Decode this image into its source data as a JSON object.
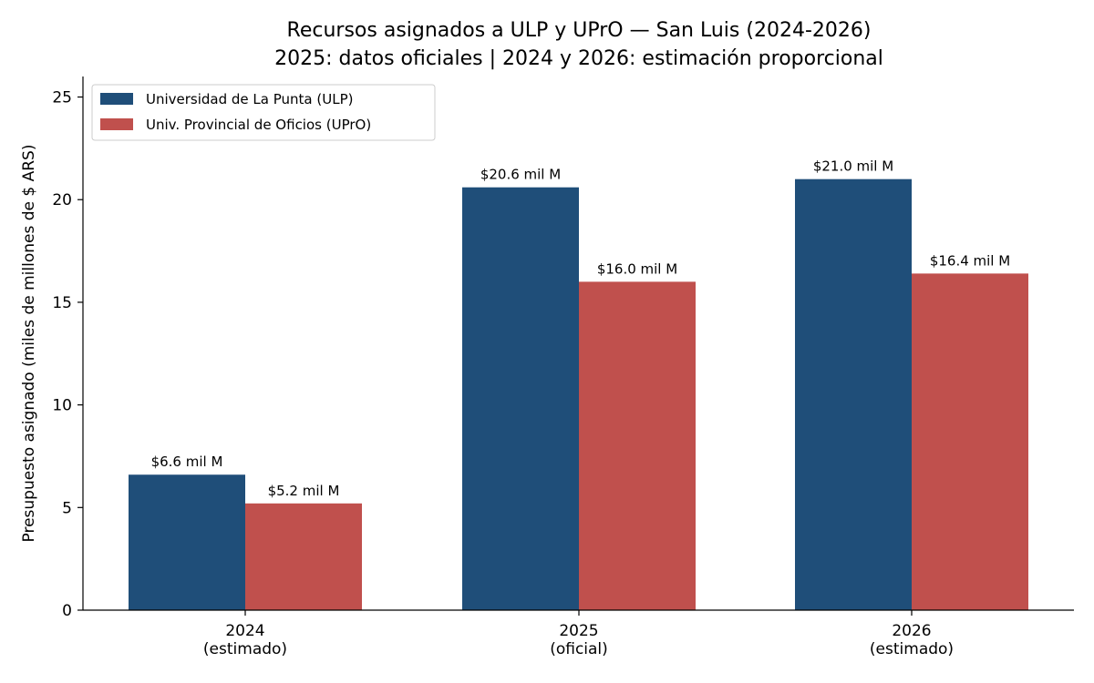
{
  "chart_data": {
    "type": "bar",
    "title": "Recursos asignados a ULP y UPrO — San Luis (2024-2026)",
    "subtitle": "2025: datos oficiales | 2024 y 2026: estimación proporcional",
    "ylabel": "Presupuesto asignado (miles de millones de $ ARS)",
    "xlabel": "",
    "categories": [
      [
        "2024",
        "(estimado)"
      ],
      [
        "2025",
        "(oficial)"
      ],
      [
        "2026",
        "(estimado)"
      ]
    ],
    "series": [
      {
        "name": "Universidad de La Punta (ULP)",
        "color": "#1f4e79",
        "values": [
          6.6,
          20.6,
          21.0
        ],
        "labels": [
          "$6.6 mil M",
          "$20.6 mil M",
          "$21.0 mil M"
        ]
      },
      {
        "name": "Univ. Provincial de Oficios (UPrO)",
        "color": "#c0504d",
        "values": [
          5.2,
          16.0,
          16.4
        ],
        "labels": [
          "$5.2 mil M",
          "$16.0 mil M",
          "$16.4 mil M"
        ]
      }
    ],
    "ylim": [
      0,
      26
    ],
    "yticks": [
      0,
      5,
      10,
      15,
      20,
      25
    ],
    "grid": false,
    "legend_position": "top-left"
  }
}
